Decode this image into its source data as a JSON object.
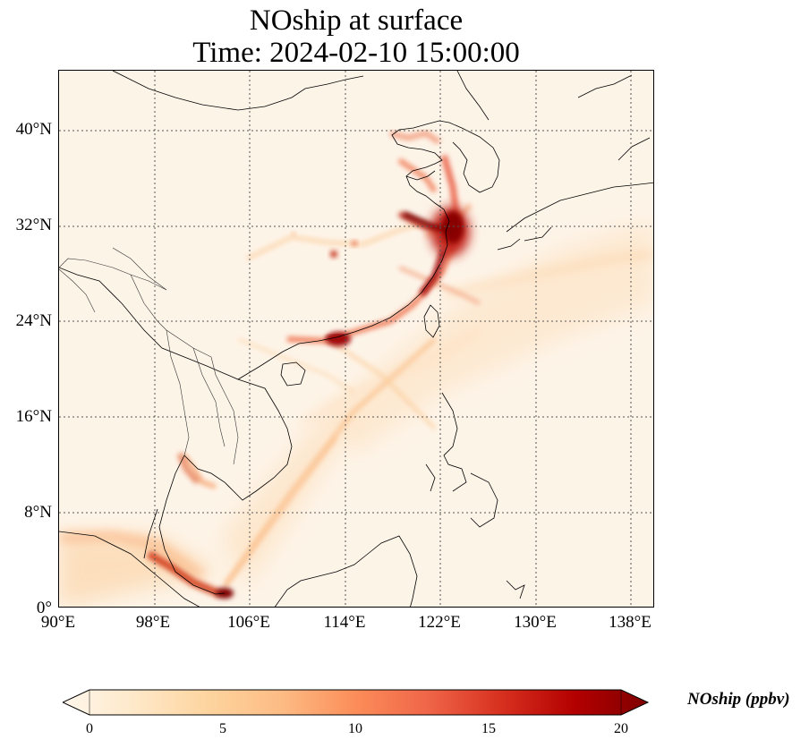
{
  "title": {
    "line1": "NOship at surface",
    "line2": "Time: 2024-02-10 15:00:00"
  },
  "map": {
    "variable": "NOship",
    "level": "surface",
    "lon_range": [
      90,
      140
    ],
    "lat_range": [
      0,
      45
    ],
    "lat_ticks": [
      "0°",
      "8°N",
      "16°N",
      "24°N",
      "32°N",
      "40°N"
    ],
    "lon_ticks": [
      "90°E",
      "98°E",
      "106°E",
      "114°E",
      "122°E",
      "130°E",
      "138°E"
    ],
    "gridlines": true,
    "colormap": "OrRd"
  },
  "colorbar": {
    "label": "NOship (ppbv)",
    "min": 0,
    "max": 20,
    "ticks": [
      "0",
      "5",
      "10",
      "15",
      "20"
    ],
    "extend": "both",
    "colors": [
      "#fff7ec",
      "#fee8c8",
      "#fdd49e",
      "#fdbb84",
      "#fc8d59",
      "#ef6548",
      "#d7301f",
      "#b30000",
      "#7f0000"
    ]
  }
}
